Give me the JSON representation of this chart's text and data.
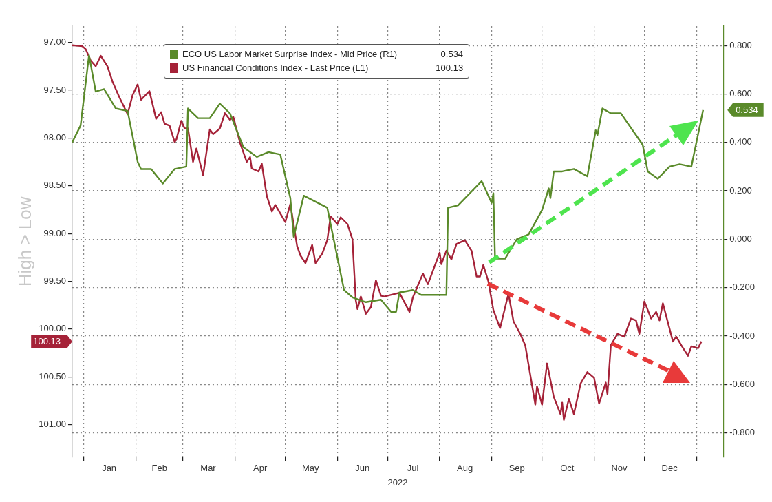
{
  "chart_data": {
    "type": "line",
    "xlabel": "2022",
    "annotations": [
      "0.534",
      "100.13"
    ],
    "ylabel": "High > Low",
    "legend": "top",
    "grid": true,
    "marker": "none",
    "line_style": "solid",
    "xlim": [
      "2021-12-25",
      "2023-01-17"
    ],
    "xticks": [
      {
        "value": "2022-01-01",
        "label": null
      },
      {
        "value": "2022-01-16",
        "label": "Jan"
      },
      {
        "value": "2022-02-01",
        "label": null
      },
      {
        "value": "2022-02-15",
        "label": "Feb"
      },
      {
        "value": "2022-03-01",
        "label": null
      },
      {
        "value": "2022-03-16",
        "label": "Mar"
      },
      {
        "value": "2022-04-01",
        "label": null
      },
      {
        "value": "2022-04-16",
        "label": "Apr"
      },
      {
        "value": "2022-05-01",
        "label": null
      },
      {
        "value": "2022-05-16",
        "label": "May"
      },
      {
        "value": "2022-06-01",
        "label": null
      },
      {
        "value": "2022-06-16",
        "label": "Jun"
      },
      {
        "value": "2022-07-01",
        "label": null
      },
      {
        "value": "2022-07-16",
        "label": "Jul"
      },
      {
        "value": "2022-08-01",
        "label": null
      },
      {
        "value": "2022-08-16",
        "label": "Aug"
      },
      {
        "value": "2022-09-01",
        "label": null
      },
      {
        "value": "2022-09-16",
        "label": "Sep"
      },
      {
        "value": "2022-10-01",
        "label": null
      },
      {
        "value": "2022-10-16",
        "label": "Oct"
      },
      {
        "value": "2022-11-01",
        "label": null
      },
      {
        "value": "2022-11-16",
        "label": "Nov"
      },
      {
        "value": "2022-12-01",
        "label": null
      },
      {
        "value": "2022-12-16",
        "label": "Dec"
      },
      {
        "value": "2023-01-01",
        "label": null
      }
    ],
    "ylim": [
      101.34,
      96.83
    ],
    "yticks": [
      {
        "value": 97,
        "label": "97.00"
      },
      {
        "value": 97.5,
        "label": "97.50"
      },
      {
        "value": 98,
        "label": "98.00"
      },
      {
        "value": 98.5,
        "label": "98.50"
      },
      {
        "value": 99,
        "label": "99.00"
      },
      {
        "value": 99.5,
        "label": "99.50"
      },
      {
        "value": 100,
        "label": "100.00"
      },
      {
        "value": 100.5,
        "label": "100.50"
      },
      {
        "value": 101,
        "label": "101.00"
      }
    ],
    "y2lim": [
      -0.9,
      0.88
    ],
    "y2ticks": [
      {
        "value": 0.8,
        "label": "0.800"
      },
      {
        "value": 0.6,
        "label": "0.600"
      },
      {
        "value": 0.4,
        "label": "0.400"
      },
      {
        "value": 0.2,
        "label": "0.200"
      },
      {
        "value": 0,
        "label": "0.000"
      },
      {
        "value": -0.2,
        "label": "-0.200"
      },
      {
        "value": -0.4,
        "label": "-0.400"
      },
      {
        "value": -0.6,
        "label": "-0.600"
      },
      {
        "value": -0.8,
        "label": "-0.800"
      }
    ],
    "series": [
      {
        "name": "ECO US Labor Market Surprise Index - Mid Price (R1)",
        "color": "#5a8a2a",
        "axis": "y2",
        "x": [
          "2021-12-25",
          "2021-12-30",
          "2022-01-04",
          "2022-01-08",
          "2022-01-13",
          "2022-01-20",
          "2022-01-27",
          "2022-02-02",
          "2022-02-04",
          "2022-02-10",
          "2022-02-17",
          "2022-02-24",
          "2022-03-03",
          "2022-03-04",
          "2022-03-10",
          "2022-03-17",
          "2022-03-23",
          "2022-03-29",
          "2022-04-06",
          "2022-04-14",
          "2022-04-21",
          "2022-04-28",
          "2022-05-04",
          "2022-05-06",
          "2022-05-12",
          "2022-05-26",
          "2022-06-05",
          "2022-06-10",
          "2022-06-18",
          "2022-06-27",
          "2022-07-03",
          "2022-07-06",
          "2022-07-08",
          "2022-07-16",
          "2022-07-21",
          "2022-08-05",
          "2022-08-06",
          "2022-08-12",
          "2022-08-26",
          "2022-09-01",
          "2022-09-02",
          "2022-09-03",
          "2022-09-09",
          "2022-09-16",
          "2022-09-23",
          "2022-10-01",
          "2022-10-05",
          "2022-10-06",
          "2022-10-08",
          "2022-10-13",
          "2022-10-20",
          "2022-10-28",
          "2022-11-02",
          "2022-11-03",
          "2022-11-06",
          "2022-11-11",
          "2022-11-17",
          "2022-11-30",
          "2022-12-03",
          "2022-12-09",
          "2022-12-16",
          "2022-12-22",
          "2022-12-29",
          "2023-01-05"
        ],
        "values": [
          0.4,
          0.47,
          0.76,
          0.61,
          0.62,
          0.54,
          0.53,
          0.32,
          0.29,
          0.29,
          0.23,
          0.29,
          0.3,
          0.54,
          0.5,
          0.5,
          0.56,
          0.52,
          0.38,
          0.34,
          0.36,
          0.35,
          0.17,
          0.01,
          0.18,
          0.13,
          -0.21,
          -0.24,
          -0.26,
          -0.25,
          -0.3,
          -0.3,
          -0.22,
          -0.21,
          -0.23,
          -0.23,
          0.13,
          0.14,
          0.24,
          0.15,
          0.19,
          -0.08,
          -0.08,
          0.0,
          0.02,
          0.12,
          0.21,
          0.17,
          0.28,
          0.28,
          0.29,
          0.26,
          0.45,
          0.43,
          0.54,
          0.52,
          0.52,
          0.39,
          0.28,
          0.25,
          0.3,
          0.31,
          0.3,
          0.534
        ]
      },
      {
        "name": "US Financial Conditions Index - Last Price (L1)",
        "color": "#a52238",
        "axis": "y",
        "x": [
          "2021-12-25",
          "2021-12-31",
          "2022-01-02",
          "2022-01-05",
          "2022-01-08",
          "2022-01-11",
          "2022-01-15",
          "2022-01-18",
          "2022-01-22",
          "2022-01-27",
          "2022-01-30",
          "2022-02-02",
          "2022-02-04",
          "2022-02-09",
          "2022-02-13",
          "2022-02-16",
          "2022-02-18",
          "2022-02-21",
          "2022-02-24",
          "2022-02-25",
          "2022-02-28",
          "2022-03-02",
          "2022-03-04",
          "2022-03-07",
          "2022-03-09",
          "2022-03-13",
          "2022-03-17",
          "2022-03-19",
          "2022-03-23",
          "2022-03-26",
          "2022-03-29",
          "2022-03-31",
          "2022-04-04",
          "2022-04-08",
          "2022-04-10",
          "2022-04-11",
          "2022-04-15",
          "2022-04-17",
          "2022-04-20",
          "2022-04-23",
          "2022-04-25",
          "2022-05-01",
          "2022-05-04",
          "2022-05-08",
          "2022-05-10",
          "2022-05-13",
          "2022-05-17",
          "2022-05-19",
          "2022-05-23",
          "2022-05-26",
          "2022-05-28",
          "2022-06-01",
          "2022-06-03",
          "2022-06-07",
          "2022-06-10",
          "2022-06-12",
          "2022-06-13",
          "2022-06-15",
          "2022-06-18",
          "2022-06-21",
          "2022-06-24",
          "2022-06-27",
          "2022-06-29",
          "2022-07-08",
          "2022-07-14",
          "2022-07-16",
          "2022-07-22",
          "2022-07-25",
          "2022-08-01",
          "2022-08-02",
          "2022-08-05",
          "2022-08-08",
          "2022-08-11",
          "2022-08-16",
          "2022-08-20",
          "2022-08-23",
          "2022-08-25",
          "2022-08-27",
          "2022-08-30",
          "2022-09-02",
          "2022-09-06",
          "2022-09-11",
          "2022-09-14",
          "2022-09-18",
          "2022-09-21",
          "2022-09-27",
          "2022-09-28",
          "2022-10-01",
          "2022-10-04",
          "2022-10-08",
          "2022-10-12",
          "2022-10-13",
          "2022-10-14",
          "2022-10-17",
          "2022-10-20",
          "2022-10-24",
          "2022-10-28",
          "2022-11-01",
          "2022-11-04",
          "2022-11-08",
          "2022-11-09",
          "2022-11-11",
          "2022-11-15",
          "2022-11-19",
          "2022-11-23",
          "2022-11-26",
          "2022-11-28",
          "2022-12-01",
          "2022-12-05",
          "2022-12-08",
          "2022-12-10",
          "2022-12-12",
          "2022-12-18",
          "2022-12-20",
          "2022-12-23",
          "2022-12-27",
          "2022-12-29",
          "2023-01-02",
          "2023-01-04"
        ],
        "values": [
          97.03,
          97.04,
          97.07,
          97.19,
          97.25,
          97.14,
          97.25,
          97.41,
          97.57,
          97.75,
          97.55,
          97.44,
          97.6,
          97.51,
          97.8,
          97.73,
          97.85,
          97.87,
          98.04,
          98.02,
          97.82,
          97.9,
          97.9,
          98.25,
          98.11,
          98.39,
          97.91,
          97.96,
          97.9,
          97.74,
          97.81,
          97.78,
          98.05,
          98.25,
          98.2,
          98.32,
          98.35,
          98.27,
          98.61,
          98.77,
          98.7,
          98.88,
          98.69,
          99.13,
          99.23,
          99.31,
          99.12,
          99.31,
          99.21,
          99.07,
          98.82,
          98.9,
          98.83,
          98.9,
          99.06,
          99.7,
          99.79,
          99.66,
          99.84,
          99.77,
          99.49,
          99.65,
          99.66,
          99.62,
          99.82,
          99.67,
          99.42,
          99.53,
          99.2,
          99.32,
          99.18,
          99.27,
          99.11,
          99.07,
          99.18,
          99.45,
          99.45,
          99.33,
          99.5,
          99.8,
          99.99,
          99.63,
          99.92,
          100.05,
          100.17,
          100.79,
          100.6,
          100.79,
          100.36,
          100.71,
          100.89,
          100.77,
          100.95,
          100.73,
          100.89,
          100.57,
          100.45,
          100.51,
          100.78,
          100.56,
          100.68,
          100.17,
          100.05,
          100.08,
          99.89,
          99.91,
          100.05,
          99.71,
          99.89,
          99.82,
          99.91,
          99.73,
          100.13,
          100.08,
          100.17,
          100.28,
          100.18,
          100.2,
          100.13
        ]
      }
    ]
  }
}
